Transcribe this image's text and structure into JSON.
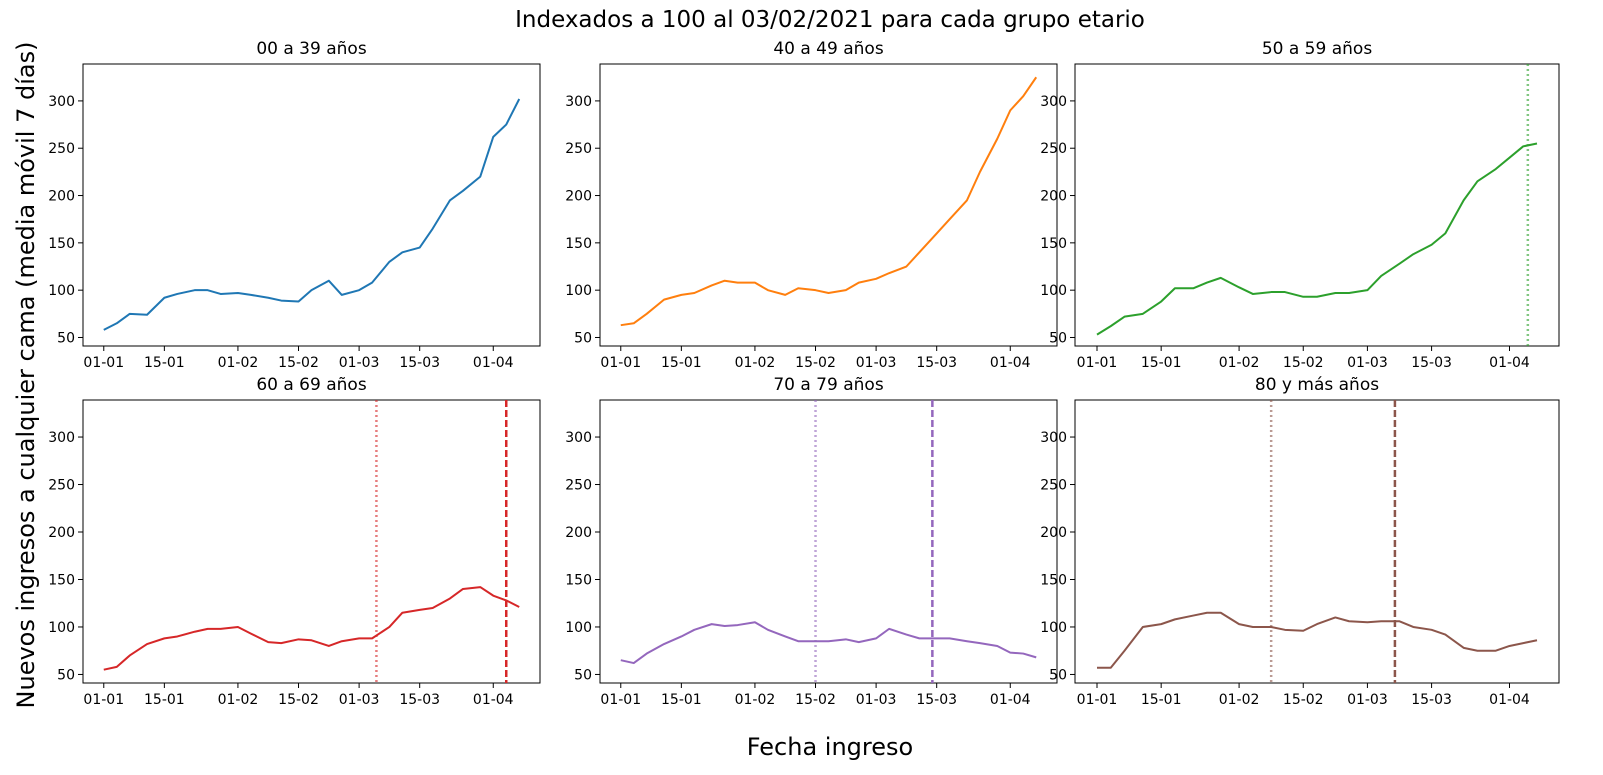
{
  "title": "Indexados a 100 al 03/02/2021 para cada grupo etario",
  "xlabel": "Fecha ingreso",
  "ylabel": "Nuevos ingresos a cualquier cama (media móvil 7 días)",
  "chart_data": [
    {
      "type": "line",
      "title": "00 a 39 años",
      "x": [
        "01-01",
        "04-01",
        "07-01",
        "11-01",
        "15-01",
        "18-01",
        "22-01",
        "25-01",
        "28-01",
        "01-02",
        "04-02",
        "08-02",
        "11-02",
        "15-02",
        "18-02",
        "22-02",
        "25-02",
        "01-03",
        "04-03",
        "08-03",
        "11-03",
        "15-03",
        "18-03",
        "22-03",
        "25-03",
        "29-03",
        "01-04",
        "04-04",
        "07-04"
      ],
      "series": [
        {
          "color": "#1f77b4",
          "values": [
            58,
            65,
            75,
            74,
            92,
            96,
            100,
            100,
            96,
            97,
            95,
            92,
            89,
            88,
            100,
            110,
            95,
            100,
            108,
            130,
            140,
            145,
            165,
            195,
            205,
            220,
            262,
            275,
            302
          ]
        }
      ],
      "ylim": [
        41,
        339
      ],
      "yticks": [
        50,
        100,
        150,
        200,
        250,
        300
      ],
      "xticks": [
        "01-01",
        "15-01",
        "01-02",
        "15-02",
        "01-03",
        "15-03",
        "01-04"
      ],
      "vlines": []
    },
    {
      "type": "line",
      "title": "40 a 49 años",
      "x": [
        "01-01",
        "04-01",
        "07-01",
        "11-01",
        "15-01",
        "18-01",
        "22-01",
        "25-01",
        "28-01",
        "01-02",
        "04-02",
        "08-02",
        "11-02",
        "15-02",
        "18-02",
        "22-02",
        "25-02",
        "01-03",
        "04-03",
        "08-03",
        "11-03",
        "15-03",
        "18-03",
        "22-03",
        "25-03",
        "29-03",
        "01-04",
        "04-04",
        "07-04"
      ],
      "series": [
        {
          "color": "#ff7f0e",
          "values": [
            63,
            65,
            75,
            90,
            95,
            97,
            105,
            110,
            108,
            108,
            100,
            95,
            102,
            100,
            97,
            100,
            108,
            112,
            118,
            125,
            140,
            160,
            175,
            195,
            225,
            260,
            290,
            305,
            325
          ]
        }
      ],
      "ylim": [
        41,
        339
      ],
      "yticks": [
        50,
        100,
        150,
        200,
        250,
        300
      ],
      "xticks": [
        "01-01",
        "15-01",
        "01-02",
        "15-02",
        "01-03",
        "15-03",
        "01-04"
      ],
      "vlines": []
    },
    {
      "type": "line",
      "title": "50 a 59 años",
      "x": [
        "01-01",
        "04-01",
        "07-01",
        "11-01",
        "15-01",
        "18-01",
        "22-01",
        "25-01",
        "28-01",
        "01-02",
        "04-02",
        "08-02",
        "11-02",
        "15-02",
        "18-02",
        "22-02",
        "25-02",
        "01-03",
        "04-03",
        "08-03",
        "11-03",
        "15-03",
        "18-03",
        "22-03",
        "25-03",
        "29-03",
        "01-04",
        "04-04",
        "07-04"
      ],
      "series": [
        {
          "color": "#2ca02c",
          "values": [
            53,
            62,
            72,
            75,
            88,
            102,
            102,
            108,
            113,
            103,
            96,
            98,
            98,
            93,
            93,
            97,
            97,
            100,
            115,
            128,
            138,
            148,
            160,
            195,
            215,
            228,
            240,
            252,
            255
          ]
        }
      ],
      "ylim": [
        41,
        339
      ],
      "yticks": [
        50,
        100,
        150,
        200,
        250,
        300
      ],
      "xticks": [
        "01-01",
        "15-01",
        "01-02",
        "15-02",
        "01-03",
        "15-03",
        "01-04"
      ],
      "vlines": [
        {
          "x": "05-04",
          "style": "dotted",
          "color": "#2ca02c",
          "alpha": 0.6
        }
      ]
    },
    {
      "type": "line",
      "title": "60 a 69 años",
      "x": [
        "01-01",
        "04-01",
        "07-01",
        "11-01",
        "15-01",
        "18-01",
        "22-01",
        "25-01",
        "28-01",
        "01-02",
        "04-02",
        "08-02",
        "11-02",
        "15-02",
        "18-02",
        "22-02",
        "25-02",
        "01-03",
        "04-03",
        "08-03",
        "11-03",
        "15-03",
        "18-03",
        "22-03",
        "25-03",
        "29-03",
        "01-04",
        "04-04",
        "07-04"
      ],
      "series": [
        {
          "color": "#d62728",
          "values": [
            55,
            58,
            70,
            82,
            88,
            90,
            95,
            98,
            98,
            100,
            93,
            84,
            83,
            87,
            86,
            80,
            85,
            88,
            88,
            100,
            115,
            118,
            120,
            130,
            140,
            142,
            133,
            128,
            121
          ]
        }
      ],
      "ylim": [
        41,
        339
      ],
      "yticks": [
        50,
        100,
        150,
        200,
        250,
        300
      ],
      "xticks": [
        "01-01",
        "15-01",
        "01-02",
        "15-02",
        "01-03",
        "15-03",
        "01-04"
      ],
      "vlines": [
        {
          "x": "05-03",
          "style": "dotted",
          "color": "#d62728",
          "alpha": 0.6
        },
        {
          "x": "04-04",
          "style": "dashed",
          "color": "#d62728",
          "alpha": 1
        }
      ]
    },
    {
      "type": "line",
      "title": "70 a 79 años",
      "x": [
        "01-01",
        "04-01",
        "07-01",
        "11-01",
        "15-01",
        "18-01",
        "22-01",
        "25-01",
        "28-01",
        "01-02",
        "04-02",
        "08-02",
        "11-02",
        "15-02",
        "18-02",
        "22-02",
        "25-02",
        "01-03",
        "04-03",
        "08-03",
        "11-03",
        "15-03",
        "18-03",
        "22-03",
        "25-03",
        "29-03",
        "01-04",
        "04-04",
        "07-04"
      ],
      "series": [
        {
          "color": "#9467bd",
          "values": [
            65,
            62,
            72,
            82,
            90,
            97,
            103,
            101,
            102,
            105,
            97,
            90,
            85,
            85,
            85,
            87,
            84,
            88,
            98,
            92,
            88,
            88,
            88,
            85,
            83,
            80,
            73,
            72,
            68
          ]
        }
      ],
      "ylim": [
        41,
        339
      ],
      "yticks": [
        50,
        100,
        150,
        200,
        250,
        300
      ],
      "xticks": [
        "01-01",
        "15-01",
        "01-02",
        "15-02",
        "01-03",
        "15-03",
        "01-04"
      ],
      "vlines": [
        {
          "x": "15-02",
          "style": "dotted",
          "color": "#9467bd",
          "alpha": 0.6
        },
        {
          "x": "14-03",
          "style": "dashed",
          "color": "#9467bd",
          "alpha": 1
        }
      ]
    },
    {
      "type": "line",
      "title": "80 y más años",
      "x": [
        "01-01",
        "04-01",
        "07-01",
        "11-01",
        "15-01",
        "18-01",
        "22-01",
        "25-01",
        "28-01",
        "01-02",
        "04-02",
        "08-02",
        "11-02",
        "15-02",
        "18-02",
        "22-02",
        "25-02",
        "01-03",
        "04-03",
        "08-03",
        "11-03",
        "15-03",
        "18-03",
        "22-03",
        "25-03",
        "29-03",
        "01-04",
        "04-04",
        "07-04"
      ],
      "series": [
        {
          "color": "#8c564b",
          "values": [
            57,
            57,
            75,
            100,
            103,
            108,
            112,
            115,
            115,
            103,
            100,
            100,
            97,
            96,
            103,
            110,
            106,
            105,
            106,
            106,
            100,
            97,
            92,
            78,
            75,
            75,
            80,
            83,
            86
          ]
        }
      ],
      "ylim": [
        41,
        339
      ],
      "yticks": [
        50,
        100,
        150,
        200,
        250,
        300
      ],
      "xticks": [
        "01-01",
        "15-01",
        "01-02",
        "15-02",
        "01-03",
        "15-03",
        "01-04"
      ],
      "vlines": [
        {
          "x": "08-02",
          "style": "dotted",
          "color": "#8c564b",
          "alpha": 0.6
        },
        {
          "x": "07-03",
          "style": "dashed",
          "color": "#8c564b",
          "alpha": 1
        }
      ]
    }
  ]
}
